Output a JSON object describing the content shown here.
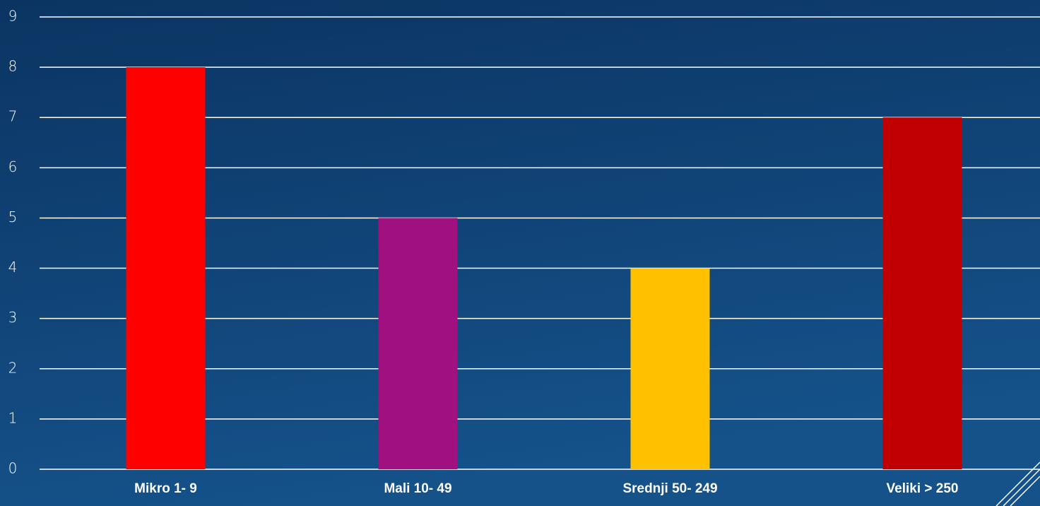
{
  "chart_data": {
    "type": "bar",
    "categories": [
      "Mikro 1- 9",
      "Mali 10- 49",
      "Srednji 50- 249",
      "Veliki > 250"
    ],
    "values": [
      8,
      5,
      4,
      7
    ],
    "colors": [
      "#ff0000",
      "#a0107f",
      "#ffc000",
      "#c00000"
    ],
    "ylim": [
      0,
      9
    ],
    "yticks": [
      0,
      1,
      2,
      3,
      4,
      5,
      6,
      7,
      8,
      9
    ],
    "grid": true
  }
}
